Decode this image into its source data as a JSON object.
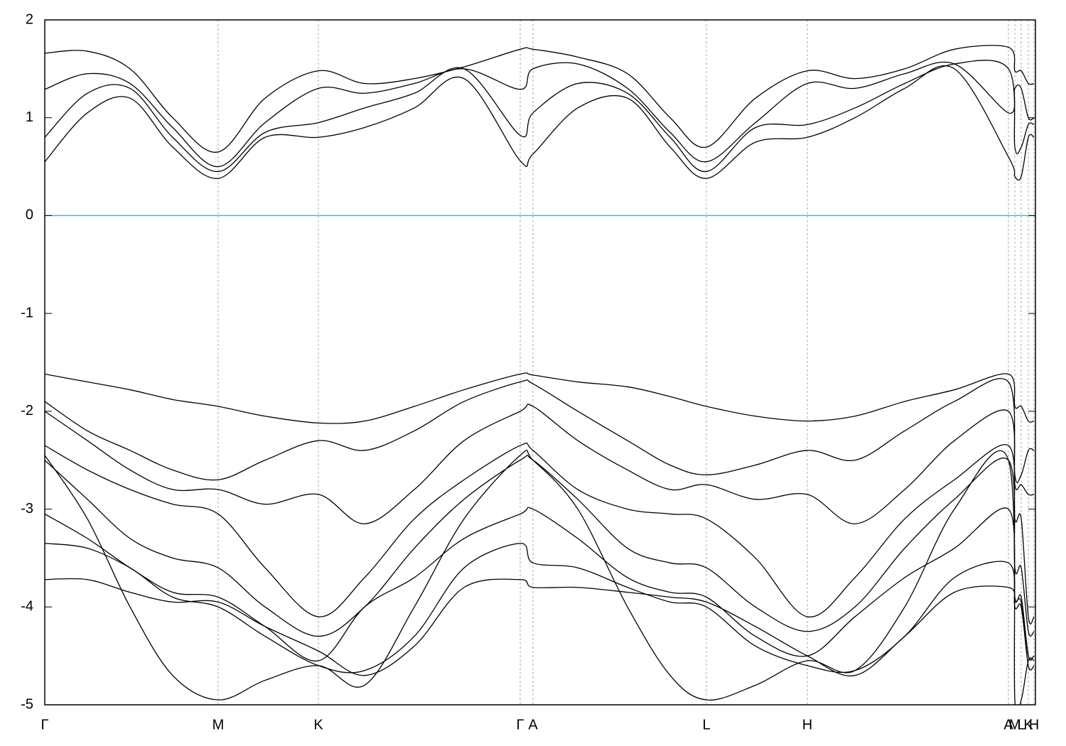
{
  "chart_data": {
    "type": "line",
    "line_color": "#000000",
    "hline": {
      "value": 0,
      "color": "#5ab4c8"
    },
    "xgrid": true,
    "xlim": [
      0,
      13.94
    ],
    "ylim": [
      -5,
      2
    ],
    "yticks": [
      -5,
      -4,
      -3,
      -2,
      -1,
      0,
      1,
      2
    ],
    "xticks": [
      {
        "value": 0,
        "label": "Γ"
      },
      {
        "value": 2.44,
        "label": "M"
      },
      {
        "value": 3.85,
        "label": "K"
      },
      {
        "value": 6.69,
        "label": "Γ"
      },
      {
        "value": 6.87,
        "label": "A"
      },
      {
        "value": 9.31,
        "label": "L"
      },
      {
        "value": 10.73,
        "label": "H"
      },
      {
        "value": 13.56,
        "label": "A"
      },
      {
        "value": 13.65,
        "label": "M"
      },
      {
        "value": 13.74,
        "label": "L"
      },
      {
        "value": 13.84,
        "label": "K"
      },
      {
        "value": 13.92,
        "label": "H"
      }
    ],
    "x": [
      0,
      0.6,
      1.2,
      1.8,
      2.44,
      3.1,
      3.85,
      4.5,
      5.2,
      5.9,
      6.69,
      6.87,
      7.5,
      8.2,
      8.8,
      9.31,
      10.0,
      10.73,
      11.4,
      12.1,
      12.8,
      13.56,
      13.65,
      13.74,
      13.84,
      13.92
    ],
    "series": [
      {
        "values": [
          0.55,
          1.05,
          1.2,
          0.7,
          0.38,
          0.8,
          0.8,
          0.9,
          1.1,
          1.4,
          0.56,
          0.63,
          1.1,
          1.2,
          0.7,
          0.38,
          0.75,
          0.8,
          1.0,
          1.3,
          1.5,
          0.6,
          0.4,
          0.4,
          0.8,
          0.8
        ]
      },
      {
        "values": [
          1.66,
          1.68,
          1.5,
          1.0,
          0.65,
          1.2,
          1.48,
          1.35,
          1.4,
          1.52,
          1.7,
          1.7,
          1.62,
          1.45,
          1.0,
          0.7,
          1.2,
          1.48,
          1.4,
          1.5,
          1.7,
          1.72,
          1.48,
          1.48,
          1.35,
          1.35
        ]
      },
      {
        "values": [
          1.29,
          1.45,
          1.35,
          0.9,
          0.5,
          0.95,
          1.3,
          1.25,
          1.35,
          1.5,
          1.29,
          1.5,
          1.55,
          1.3,
          0.85,
          0.55,
          0.95,
          1.35,
          1.3,
          1.45,
          1.55,
          1.05,
          1.3,
          1.3,
          1.0,
          1.0
        ]
      },
      {
        "values": [
          0.8,
          1.25,
          1.3,
          0.8,
          0.45,
          0.85,
          0.95,
          1.1,
          1.25,
          1.5,
          0.82,
          1.05,
          1.35,
          1.25,
          0.8,
          0.45,
          0.9,
          0.93,
          1.1,
          1.35,
          1.55,
          1.5,
          0.7,
          0.7,
          0.93,
          0.93
        ]
      },
      {
        "values": [
          -1.62,
          -1.7,
          -1.78,
          -1.88,
          -1.95,
          -2.05,
          -2.12,
          -2.1,
          -1.95,
          -1.78,
          -1.62,
          -1.63,
          -1.7,
          -1.75,
          -1.85,
          -1.95,
          -2.05,
          -2.1,
          -2.05,
          -1.9,
          -1.78,
          -1.62,
          -1.95,
          -1.95,
          -2.1,
          -2.1
        ]
      },
      {
        "values": [
          -1.9,
          -2.2,
          -2.4,
          -2.6,
          -2.7,
          -2.5,
          -2.3,
          -2.4,
          -2.2,
          -1.9,
          -1.7,
          -1.72,
          -2.0,
          -2.3,
          -2.55,
          -2.65,
          -2.55,
          -2.4,
          -2.5,
          -2.2,
          -1.9,
          -1.7,
          -2.65,
          -2.65,
          -2.4,
          -2.4
        ]
      },
      {
        "values": [
          -2.0,
          -2.3,
          -2.6,
          -2.8,
          -2.8,
          -2.95,
          -2.85,
          -3.15,
          -2.8,
          -2.3,
          -2.0,
          -1.95,
          -2.3,
          -2.6,
          -2.8,
          -2.75,
          -2.9,
          -2.85,
          -3.15,
          -2.8,
          -2.3,
          -2.0,
          -2.75,
          -2.75,
          -2.85,
          -2.85
        ]
      },
      {
        "values": [
          -2.35,
          -2.6,
          -2.8,
          -2.95,
          -3.05,
          -3.6,
          -4.1,
          -3.7,
          -3.1,
          -2.7,
          -2.35,
          -2.4,
          -2.8,
          -3.0,
          -3.05,
          -3.1,
          -3.5,
          -4.1,
          -3.7,
          -3.1,
          -2.7,
          -2.35,
          -3.1,
          -3.1,
          -4.1,
          -4.1
        ]
      },
      {
        "values": [
          -2.5,
          -2.9,
          -3.3,
          -3.5,
          -3.6,
          -4.0,
          -4.3,
          -4.0,
          -3.4,
          -2.9,
          -2.5,
          -2.5,
          -2.9,
          -3.4,
          -3.55,
          -3.6,
          -4.0,
          -4.25,
          -4.0,
          -3.4,
          -2.9,
          -2.5,
          -3.6,
          -3.6,
          -4.25,
          -4.25
        ]
      },
      {
        "values": [
          -3.05,
          -3.3,
          -3.6,
          -3.85,
          -3.9,
          -4.2,
          -4.55,
          -4.0,
          -3.7,
          -3.3,
          -3.05,
          -3.0,
          -3.3,
          -3.7,
          -3.85,
          -3.9,
          -4.3,
          -4.5,
          -4.1,
          -3.7,
          -3.4,
          -3.0,
          -3.9,
          -3.9,
          -4.5,
          -4.5
        ]
      },
      {
        "values": [
          -3.35,
          -3.4,
          -3.6,
          -3.9,
          -4.0,
          -4.3,
          -4.6,
          -4.65,
          -4.3,
          -3.6,
          -3.35,
          -3.55,
          -3.6,
          -3.8,
          -3.95,
          -4.0,
          -4.4,
          -4.6,
          -4.65,
          -4.3,
          -3.7,
          -3.55,
          -4.0,
          -4.0,
          -4.6,
          -4.6
        ]
      },
      {
        "values": [
          -3.72,
          -3.72,
          -3.85,
          -3.95,
          -3.95,
          -4.2,
          -4.45,
          -4.7,
          -4.4,
          -3.8,
          -3.72,
          -3.8,
          -3.8,
          -3.85,
          -3.9,
          -3.95,
          -4.2,
          -4.5,
          -4.7,
          -4.3,
          -3.85,
          -3.8,
          -3.95,
          -3.95,
          -4.5,
          -4.5
        ]
      },
      {
        "values": [
          -2.45,
          -3.1,
          -4.0,
          -4.7,
          -4.95,
          -4.75,
          -4.6,
          -4.8,
          -4.0,
          -3.1,
          -2.45,
          -2.5,
          -3.0,
          -4.0,
          -4.7,
          -4.95,
          -4.8,
          -4.55,
          -4.65,
          -4.0,
          -3.0,
          -2.5,
          -4.95,
          -4.95,
          -4.55,
          -4.55
        ]
      }
    ]
  }
}
